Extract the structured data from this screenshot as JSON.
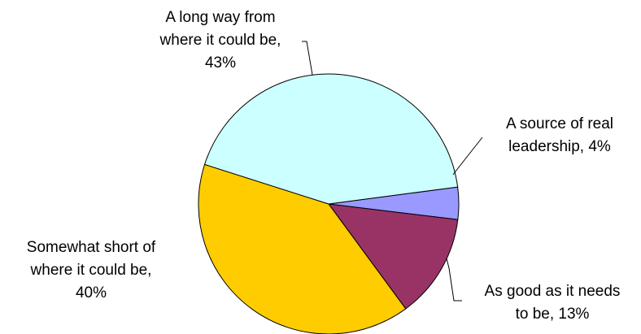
{
  "chart_data": {
    "type": "pie",
    "title": "",
    "start_angle_deg": 7.5,
    "direction": "clockwise",
    "slices": [
      {
        "label_lines": [
          "A source of real",
          "leadership, 4%"
        ],
        "value": 4,
        "color": "#9999FF"
      },
      {
        "label_lines": [
          "As good as it needs",
          "to be, 13%"
        ],
        "value": 13,
        "color": "#993366"
      },
      {
        "label_lines": [
          "Somewhat short of",
          "where it could be,",
          "40%"
        ],
        "value": 40,
        "color": "#FFCC00"
      },
      {
        "label_lines": [
          "A long way from",
          "where it could be,",
          "43%"
        ],
        "value": 43,
        "color": "#CCFFFF"
      }
    ]
  }
}
